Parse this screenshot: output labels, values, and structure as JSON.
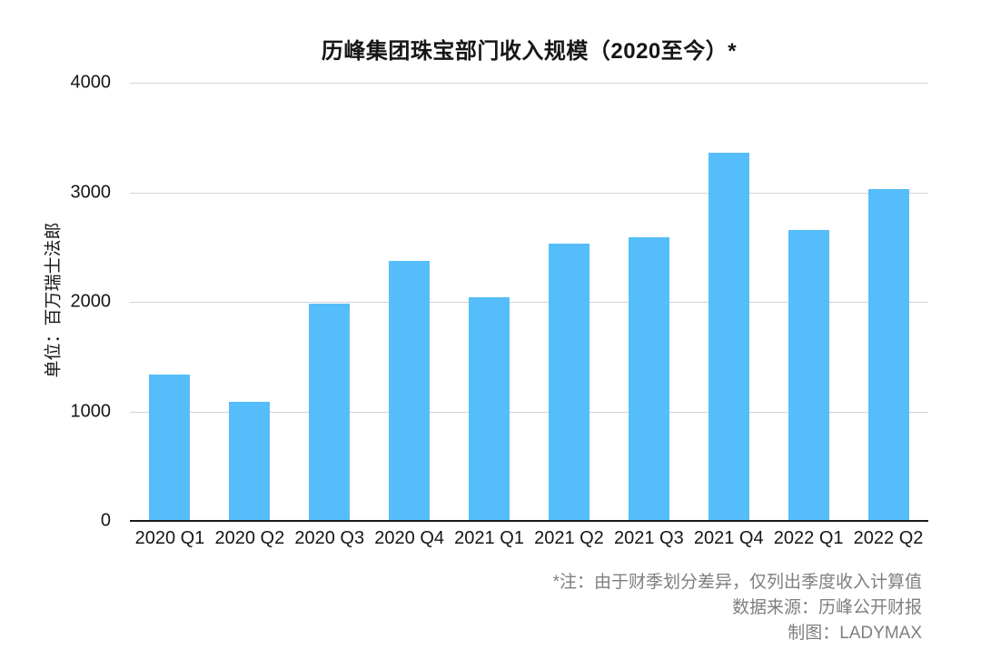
{
  "chart": {
    "title": "历峰集团珠宝部门收入规模（2020至今）*",
    "y_axis_title": "单位：百万瑞士法郎"
  },
  "chart_data": {
    "type": "bar",
    "title": "历峰集团珠宝部门收入规模（2020至今）*",
    "categories": [
      "2020 Q1",
      "2020 Q2",
      "2020 Q3",
      "2020 Q4",
      "2021 Q1",
      "2021 Q2",
      "2021 Q3",
      "2021 Q4",
      "2022 Q1",
      "2022 Q2"
    ],
    "values": [
      1325,
      1080,
      1975,
      2365,
      2030,
      2520,
      2580,
      3350,
      2650,
      3020
    ],
    "xlabel": "",
    "ylabel": "单位：百万瑞士法郎",
    "ylim": [
      0,
      4000
    ],
    "y_ticks": [
      0,
      1000,
      2000,
      3000,
      4000
    ],
    "bar_color": "#55BEFA",
    "gridline_color": "#d4d4d4",
    "axis_line_color": "#1a1a1a",
    "grid": "horizontal-only",
    "legend": "none"
  },
  "footer": {
    "note": "*注：由于财季划分差异，仅列出季度收入计算值",
    "source": "数据来源：历峰公开财报",
    "credit": "制图：LADYMAX"
  }
}
